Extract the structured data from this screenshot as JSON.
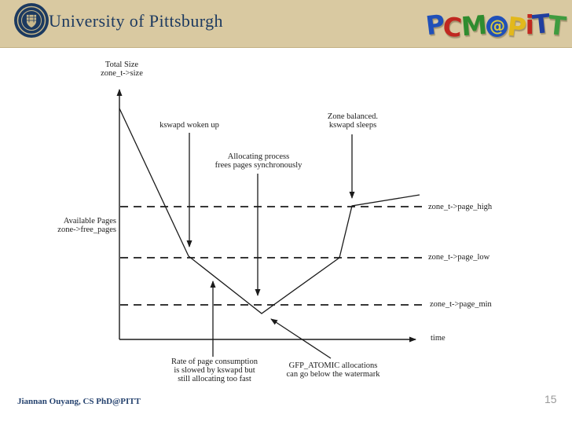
{
  "header": {
    "university": "University of Pittsburgh",
    "logo_letters": [
      {
        "ch": "P",
        "color": "#2050b8"
      },
      {
        "ch": "C",
        "color": "#c02820"
      },
      {
        "ch": "M",
        "color": "#2f8c2f"
      },
      {
        "ch": "@",
        "color": "#d8c840",
        "bg": "#2050b8",
        "circle": true
      },
      {
        "ch": "P",
        "color": "#e2b81c"
      },
      {
        "ch": "i",
        "color": "#c02820"
      },
      {
        "ch": "T",
        "color": "#203f9f"
      },
      {
        "ch": "T",
        "color": "#3f9b3f"
      }
    ]
  },
  "diagram": {
    "y_axis_label": "Total Size\nzone_t->size",
    "left_label": "Available Pages\nzone->free_pages",
    "annotations": {
      "kswapd": "kswapd woken up",
      "zone_balanced": "Zone balanced.\nkswapd sleeps",
      "allocating": "Allocating process\nfrees pages synchronously",
      "rate": "Rate of page consumption\nis slowed by kswapd but\nstill allocating too fast",
      "gfp": "GFP_ATOMIC allocations\ncan go below the watermark"
    },
    "watermarks": {
      "high": "zone_t->page_high",
      "low": "zone_t->page_low",
      "min": "zone_t->page_min"
    },
    "x_axis_label": "time"
  },
  "footer": {
    "author": "Jiannan Ouyang, CS PhD@PITT",
    "page_number": "15"
  },
  "colors": {
    "header_band": "#d9c9a1",
    "navy": "#1d3a60",
    "diagram_line": "#1b1b1b",
    "footer_text": "#26436f",
    "page_number": "#9a9a9a"
  }
}
